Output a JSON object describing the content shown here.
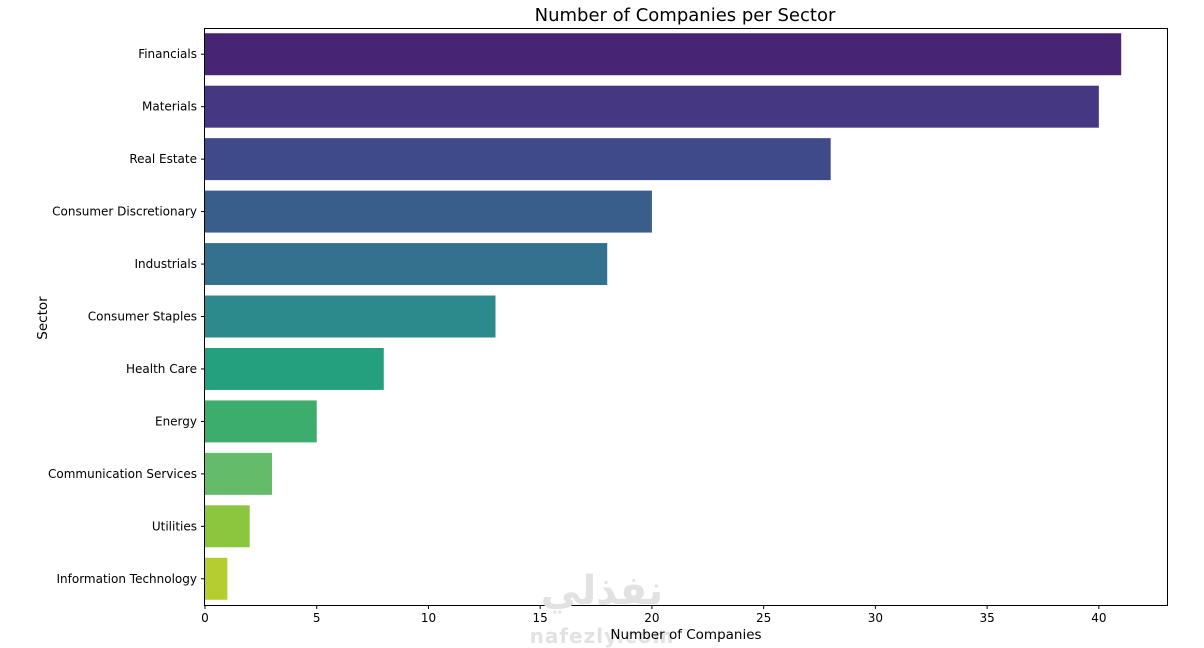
{
  "chart_data": {
    "type": "bar",
    "orientation": "horizontal",
    "title": "Number of Companies per Sector",
    "xlabel": "Number of Companies",
    "ylabel": "Sector",
    "xlim": [
      0,
      43.05
    ],
    "xticks": [
      0,
      5,
      10,
      15,
      20,
      25,
      30,
      35,
      40
    ],
    "grid": false,
    "categories": [
      "Financials",
      "Materials",
      "Real Estate",
      "Consumer Discretionary",
      "Industrials",
      "Consumer Staples",
      "Health Care",
      "Energy",
      "Communication Services",
      "Utilities",
      "Information Technology"
    ],
    "values": [
      41,
      40,
      28,
      20,
      18,
      13,
      8,
      5,
      3,
      2,
      1
    ],
    "colors": [
      "#482475",
      "#453781",
      "#3e4a89",
      "#3a5e8c",
      "#34718e",
      "#2c8a8d",
      "#24a07e",
      "#3dad6e",
      "#64bc6a",
      "#8cc53e",
      "#b5cd2e"
    ]
  },
  "watermark": {
    "arabic": "نفذلي",
    "latin": "nafezly.com"
  }
}
